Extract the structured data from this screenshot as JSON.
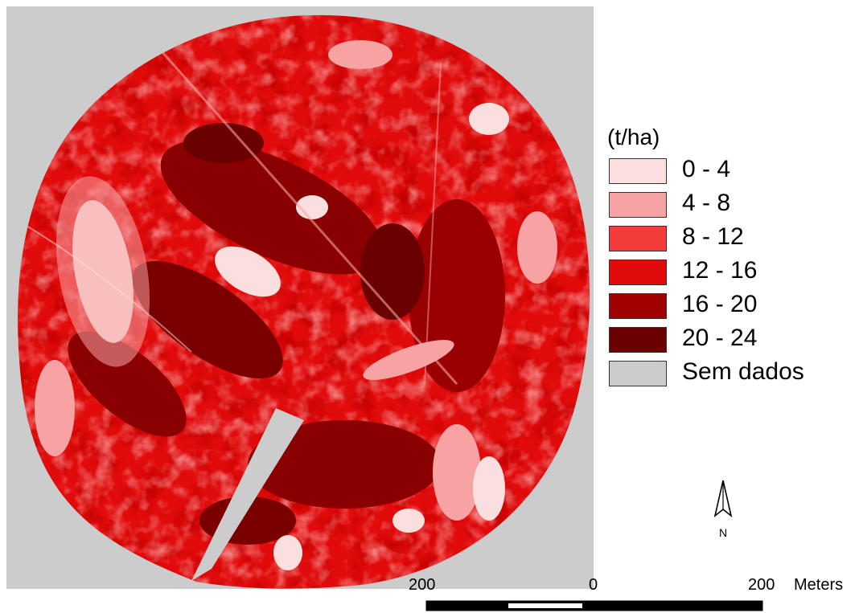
{
  "legend": {
    "title": "(t/ha)",
    "items": [
      {
        "label": "0 - 4",
        "color": "#fbdfdf"
      },
      {
        "label": "4 - 8",
        "color": "#f7a3a3"
      },
      {
        "label": "8 - 12",
        "color": "#f53c3c"
      },
      {
        "label": "12 - 16",
        "color": "#e10b0b"
      },
      {
        "label": "16 - 20",
        "color": "#a00000"
      },
      {
        "label": "20 - 24",
        "color": "#6a0000"
      },
      {
        "label": "Sem dados",
        "color": "#cccccc"
      }
    ]
  },
  "north_arrow": {
    "label": "N",
    "icon": "north-arrow-icon"
  },
  "scale_bar": {
    "labels": [
      "200",
      "0",
      "200"
    ],
    "unit": "Meters"
  }
}
